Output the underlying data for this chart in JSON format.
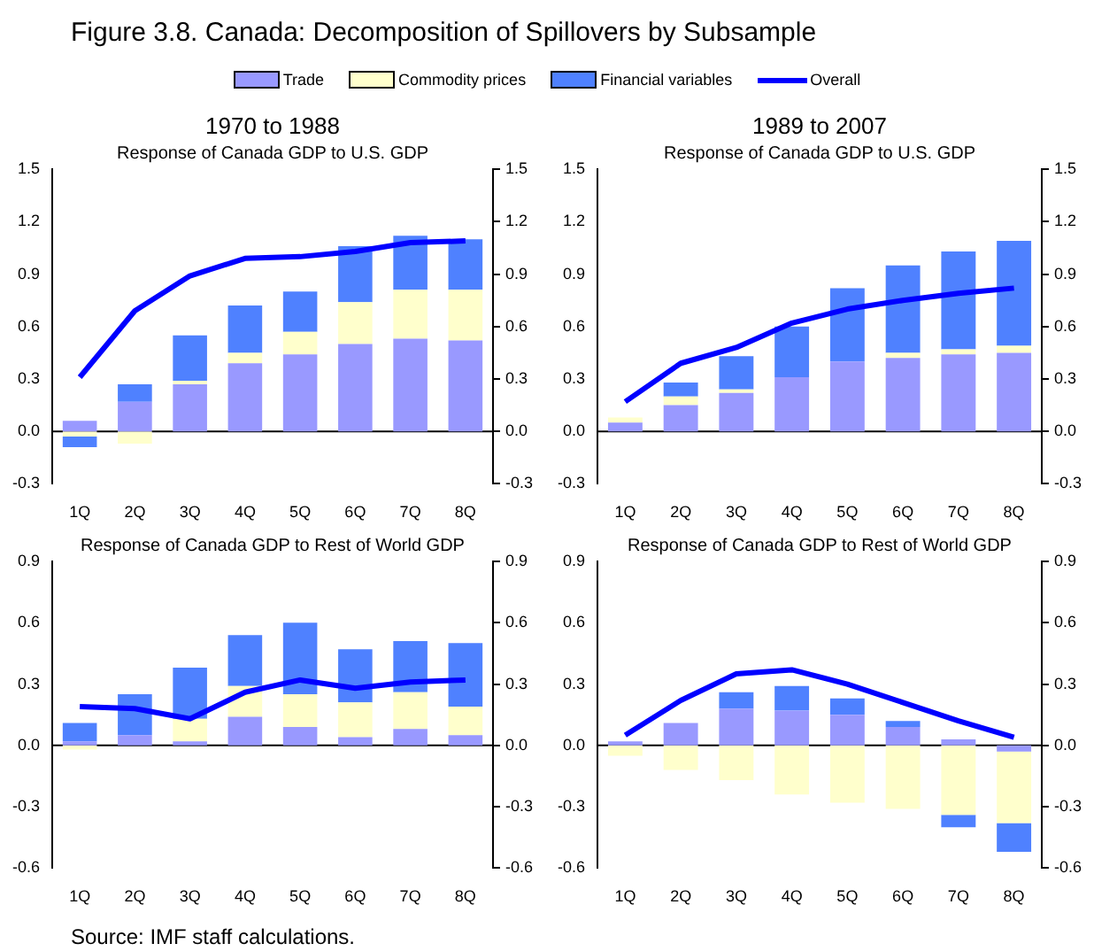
{
  "chart_data": [
    {
      "type": "bar",
      "stacked": true,
      "title": "1970 to 1988",
      "subtitle": "Response of Canada GDP to U.S. GDP",
      "annotations": [
        "Figure 3.8. Canada: Decomposition of Spillovers by Subsample",
        "Source: IMF staff calculations."
      ],
      "legend": "top",
      "ref_lines": [
        {
          "axis": "y",
          "value": 0,
          "color": "#000000"
        }
      ],
      "categories": [
        "1Q",
        "2Q",
        "3Q",
        "4Q",
        "5Q",
        "6Q",
        "7Q",
        "8Q"
      ],
      "ylim": [
        -0.3,
        1.5
      ],
      "yticks": [
        {
          "value": -0.3,
          "label": "-0.3"
        },
        {
          "value": 0,
          "label": "0.0"
        },
        0.3,
        0.6,
        0.9,
        1.2,
        1.5
      ],
      "y2lim": [
        -0.3,
        1.5
      ],
      "y2ticks": [
        {
          "value": -0.3,
          "label": "-0.3"
        },
        {
          "value": 0,
          "label": "0.0"
        },
        0.3,
        0.6,
        0.9,
        1.2,
        1.5
      ],
      "series": [
        {
          "name": "Trade",
          "color": "#9999ff",
          "values": [
            0.06,
            0.17,
            0.27,
            0.39,
            0.44,
            0.5,
            0.53,
            0.52
          ]
        },
        {
          "name": "Commodity prices",
          "color": "#ffffcc",
          "values": [
            -0.03,
            -0.07,
            0.02,
            0.06,
            0.13,
            0.24,
            0.28,
            0.29
          ]
        },
        {
          "name": "Financial variables",
          "color": "#4f81ff",
          "values": [
            -0.06,
            0.1,
            0.26,
            0.27,
            0.23,
            0.32,
            0.31,
            0.29
          ]
        },
        {
          "name": "Overall",
          "type": "line",
          "color": "#0000ff",
          "values": [
            0.31,
            0.69,
            0.89,
            0.99,
            1.0,
            1.03,
            1.08,
            1.09
          ]
        }
      ]
    },
    {
      "type": "bar",
      "stacked": true,
      "title": "1989 to 2007",
      "subtitle": "Response of Canada GDP to U.S. GDP",
      "ref_lines": [
        {
          "axis": "y",
          "value": 0,
          "color": "#000000"
        }
      ],
      "categories": [
        "1Q",
        "2Q",
        "3Q",
        "4Q",
        "5Q",
        "6Q",
        "7Q",
        "8Q"
      ],
      "ylim": [
        -0.3,
        1.5
      ],
      "yticks": [
        {
          "value": -0.3,
          "label": "-0.3"
        },
        {
          "value": 0,
          "label": "0.0"
        },
        0.3,
        0.6,
        0.9,
        1.2,
        1.5
      ],
      "y2lim": [
        -0.3,
        1.5
      ],
      "y2ticks": [
        {
          "value": -0.3,
          "label": "-0.3"
        },
        {
          "value": 0,
          "label": "0.0"
        },
        0.3,
        0.6,
        0.9,
        1.2,
        1.5
      ],
      "series": [
        {
          "color": "#9999ff",
          "values": [
            0.05,
            0.15,
            0.22,
            0.31,
            0.4,
            0.42,
            0.44,
            0.45
          ]
        },
        {
          "color": "#ffffcc",
          "values": [
            0.03,
            0.05,
            0.02,
            null,
            null,
            0.03,
            0.03,
            0.04
          ]
        },
        {
          "color": "#4f81ff",
          "values": [
            0,
            0.08,
            0.19,
            0.29,
            0.42,
            0.5,
            0.56,
            0.6
          ]
        },
        {
          "type": "line",
          "color": "#0000ff",
          "values": [
            0.17,
            0.39,
            0.48,
            0.62,
            0.7,
            0.75,
            0.79,
            0.82
          ]
        }
      ]
    },
    {
      "type": "bar",
      "stacked": true,
      "title": "Response of Canada GDP to Rest of World GDP",
      "ref_lines": [
        {
          "axis": "y",
          "value": 0,
          "color": "#000000"
        }
      ],
      "categories": [
        "1Q",
        "2Q",
        "3Q",
        "4Q",
        "5Q",
        "6Q",
        "7Q",
        "8Q"
      ],
      "ylim": [
        -0.6,
        0.9
      ],
      "yticks": [
        {
          "value": -0.6,
          "label": "-0.6"
        },
        {
          "value": -0.3,
          "label": "-0.3"
        },
        {
          "value": 0,
          "label": "0.0"
        },
        0.3,
        0.6,
        0.9
      ],
      "y2lim": [
        -0.6,
        0.9
      ],
      "y2ticks": [
        {
          "value": -0.6,
          "label": "-0.6"
        },
        {
          "value": -0.3,
          "label": "-0.3"
        },
        {
          "value": 0,
          "label": "0.0"
        },
        0.3,
        0.6,
        0.9
      ],
      "series": [
        {
          "color": "#9999ff",
          "values": [
            0.02,
            0.05,
            0.02,
            0.14,
            0.09,
            0.04,
            0.08,
            0.05
          ]
        },
        {
          "color": "#ffffcc",
          "values": [
            -0.02,
            0,
            0.11,
            0.15,
            0.16,
            0.17,
            0.18,
            0.14
          ]
        },
        {
          "color": "#4f81ff",
          "values": [
            0.09,
            0.2,
            0.25,
            0.25,
            0.35,
            0.26,
            0.25,
            0.31
          ]
        },
        {
          "type": "line",
          "color": "#0000ff",
          "values": [
            0.19,
            0.18,
            0.13,
            0.26,
            0.32,
            0.28,
            0.31,
            0.32
          ]
        }
      ]
    },
    {
      "type": "bar",
      "stacked": true,
      "title": "Response of Canada GDP to Rest of World GDP",
      "ref_lines": [
        {
          "axis": "y",
          "value": 0,
          "color": "#000000"
        }
      ],
      "categories": [
        "1Q",
        "2Q",
        "3Q",
        "4Q",
        "5Q",
        "6Q",
        "7Q",
        "8Q"
      ],
      "ylim": [
        -0.6,
        0.9
      ],
      "yticks": [
        {
          "value": -0.6,
          "label": "-0.6"
        },
        {
          "value": -0.3,
          "label": "-0.3"
        },
        {
          "value": 0,
          "label": "0.0"
        },
        0.3,
        0.6,
        0.9
      ],
      "y2lim": [
        -0.6,
        0.9
      ],
      "y2ticks": [
        {
          "value": -0.6,
          "label": "-0.6"
        },
        {
          "value": -0.3,
          "label": "-0.3"
        },
        {
          "value": 0,
          "label": "0.0"
        },
        0.3,
        0.6,
        0.9
      ],
      "series": [
        {
          "color": "#9999ff",
          "values": [
            0.02,
            0.11,
            0.18,
            0.17,
            0.15,
            0.09,
            0.03,
            -0.03
          ]
        },
        {
          "color": "#ffffcc",
          "values": [
            -0.05,
            -0.12,
            -0.17,
            -0.24,
            -0.28,
            -0.31,
            -0.34,
            -0.35
          ]
        },
        {
          "color": "#4f81ff",
          "values": [
            0,
            0,
            0.08,
            0.12,
            0.08,
            0.03,
            -0.06,
            -0.14
          ]
        },
        {
          "type": "line",
          "color": "#0000ff",
          "values": [
            0.05,
            0.22,
            0.35,
            0.37,
            0.3,
            0.21,
            0.12,
            0.04
          ]
        }
      ]
    }
  ]
}
